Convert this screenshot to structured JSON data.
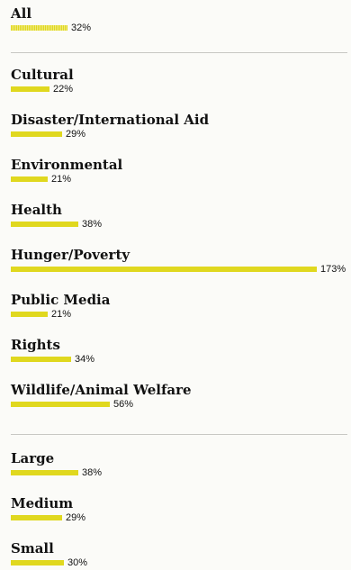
{
  "chart_data": {
    "type": "bar",
    "orientation": "horizontal",
    "unit": "%",
    "xlim": [
      0,
      173
    ],
    "groups": [
      {
        "bars": [
          {
            "category": "All",
            "value": 32,
            "value_label": "32%"
          }
        ]
      },
      {
        "bars": [
          {
            "category": "Cultural",
            "value": 22,
            "value_label": "22%"
          },
          {
            "category": "Disaster/International Aid",
            "value": 29,
            "value_label": "29%"
          },
          {
            "category": "Environmental",
            "value": 21,
            "value_label": "21%"
          },
          {
            "category": "Health",
            "value": 38,
            "value_label": "38%"
          },
          {
            "category": "Hunger/Poverty",
            "value": 173,
            "value_label": "173%"
          },
          {
            "category": "Public Media",
            "value": 21,
            "value_label": "21%"
          },
          {
            "category": "Rights",
            "value": 34,
            "value_label": "34%"
          },
          {
            "category": "Wildlife/Animal Welfare",
            "value": 56,
            "value_label": "56%"
          }
        ]
      },
      {
        "bars": [
          {
            "category": "Large",
            "value": 38,
            "value_label": "38%"
          },
          {
            "category": "Medium",
            "value": 29,
            "value_label": "29%"
          },
          {
            "category": "Small",
            "value": 30,
            "value_label": "30%"
          }
        ]
      }
    ],
    "colors": {
      "bar": "#e0d81f",
      "text": "#111111",
      "divider": "#c8c8c4"
    }
  }
}
